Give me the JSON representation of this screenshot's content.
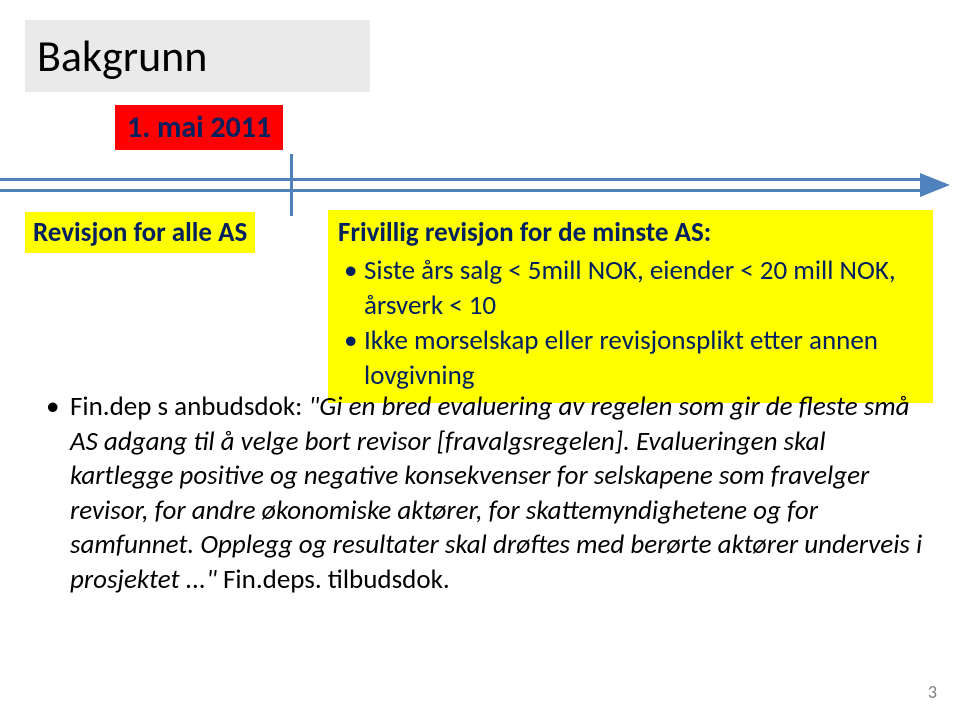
{
  "title": "Bakgrunn",
  "date_label": "1. mai 2011",
  "left_label": "Revisjon for alle AS",
  "right_box": {
    "heading": "Frivillig revisjon for de minste AS:",
    "items": [
      "Siste års salg < 5mill NOK, eiender < 20 mill NOK, årsverk < 10",
      "Ikke morselskap eller revisjonsplikt etter annen lovgivning"
    ]
  },
  "body": {
    "prefix": "Fin.dep s anbudsdok: ",
    "italic_part": "\"Gi en bred evaluering av regelen som gir de fleste små AS adgang til å velge bort revisor [fravalgsregelen]. Evalueringen skal kartlegge positive og negative konsekvenser for selskapene som fravelger revisor, for andre økonomiske aktører, for skattemyndighetene og for samfunnet. Opplegg og resultater skal drøftes med berørte aktører underveis i prosjektet ...\" ",
    "suffix": "Fin.deps. tilbudsdok."
  },
  "page_number": "3",
  "colors": {
    "title_band_bg": "#eaeaea",
    "date_bg": "#ff0000",
    "highlight_bg": "#ffff00",
    "timeline": "#4f81bd",
    "dark_blue_text": "#002060"
  }
}
